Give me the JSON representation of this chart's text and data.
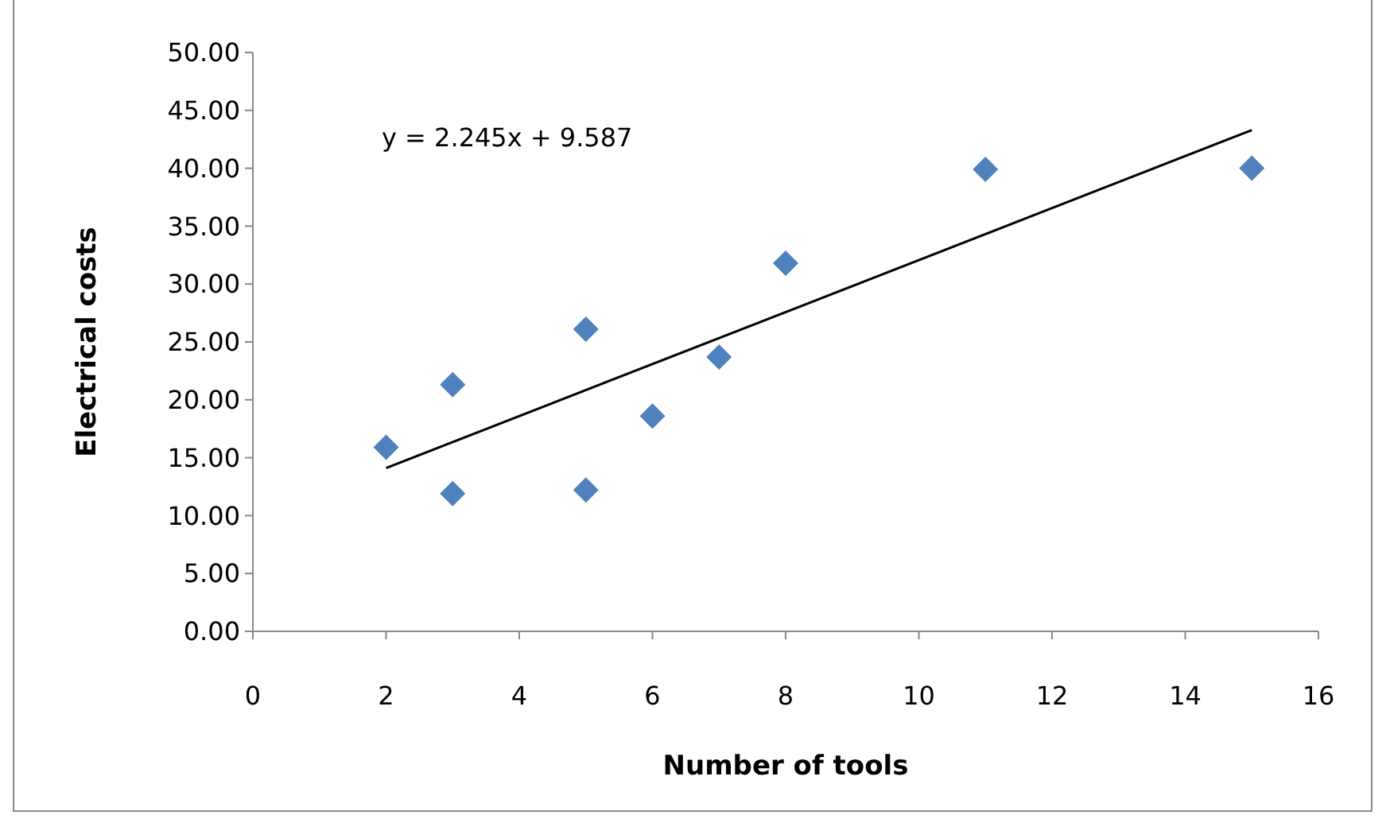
{
  "chart_data": {
    "type": "scatter",
    "xlabel": "Number of tools",
    "ylabel": "Electrical costs",
    "xlim": [
      0,
      16
    ],
    "xticks": [
      0,
      2,
      4,
      6,
      8,
      10,
      12,
      14,
      16
    ],
    "ylim": [
      0,
      50
    ],
    "yticks": [
      {
        "value": 0,
        "label": "0.00"
      },
      {
        "value": 5,
        "label": "5.00"
      },
      {
        "value": 10,
        "label": "10.00"
      },
      {
        "value": 15,
        "label": "15.00"
      },
      {
        "value": 20,
        "label": "20.00"
      },
      {
        "value": 25,
        "label": "25.00"
      },
      {
        "value": 30,
        "label": "30.00"
      },
      {
        "value": 35,
        "label": "35.00"
      },
      {
        "value": 40,
        "label": "40.00"
      },
      {
        "value": 45,
        "label": "45.00"
      },
      {
        "value": 50,
        "label": "50.00"
      }
    ],
    "marker": "diamond",
    "grid": false,
    "annotations": [
      "y = 2.245x + 9.587"
    ],
    "series": [
      {
        "color": "#4f81bd",
        "x": [
          2,
          3,
          3,
          5,
          5,
          6,
          7,
          8,
          11,
          15
        ],
        "values": [
          15.9,
          21.3,
          11.9,
          26.1,
          12.2,
          18.6,
          23.7,
          31.8,
          39.9,
          40.0
        ]
      },
      {
        "type": "line",
        "color": "#000000",
        "marker": "none",
        "x": [
          2,
          15
        ],
        "values": [
          14.1,
          43.3
        ]
      }
    ]
  }
}
